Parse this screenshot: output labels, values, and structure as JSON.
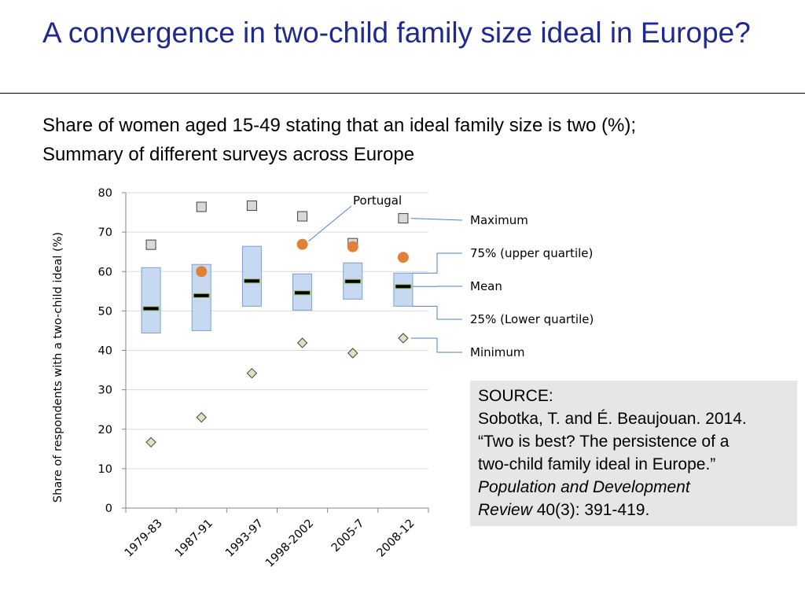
{
  "slide": {
    "title": "A convergence in two-child family size ideal in Europe?",
    "subtitle_line1": "Share of women aged 15-49 stating that an ideal family size is two (%);",
    "subtitle_line2": "Summary of different surveys across Europe"
  },
  "source": {
    "heading": "SOURCE:",
    "line1": "Sobotka, T. and É. Beaujouan. 2014.",
    "line2": "“Two is best? The persistence of a",
    "line3": "two-child family ideal in Europe.”",
    "journal_line1": "Population and Development",
    "journal_line2": "Review",
    "citation": " 40(3): 391-419."
  },
  "colors": {
    "title": "#1F2A8C",
    "box_fill": "#C6D9F1",
    "box_stroke": "#7F9FCF",
    "mean_bar": "#000000",
    "mean_outline": "#9BBB59",
    "portugal": "#E0813A",
    "maximum_marker": "#D9D9D9",
    "minimum_marker": "#D8E4BC",
    "callout_line": "#4F81BD",
    "source_bg": "#E6E6E6"
  },
  "chart_data": {
    "type": "box",
    "categories": [
      "1979-83",
      "1987-91",
      "1993-97",
      "1998-2002",
      "2005-7",
      "2008-12"
    ],
    "ylabel": "Share of respondents with a two-child ideal (%)",
    "xlabel": "",
    "ylim": [
      0,
      80
    ],
    "yticks": [
      0,
      10,
      20,
      30,
      40,
      50,
      60,
      70,
      80
    ],
    "grid": true,
    "series": [
      {
        "key": "max",
        "name": "Maximum",
        "values": [
          66.8,
          76.4,
          76.7,
          74.0,
          67.2,
          73.5
        ]
      },
      {
        "key": "q3",
        "name": "75% (upper quartile)",
        "values": [
          61.0,
          61.8,
          66.4,
          59.4,
          62.2,
          59.6
        ]
      },
      {
        "key": "mean",
        "name": "Mean",
        "values": [
          50.6,
          53.9,
          57.6,
          54.6,
          57.5,
          56.2
        ]
      },
      {
        "key": "q1",
        "name": "25% (Lower quartile)",
        "values": [
          44.4,
          45.0,
          51.2,
          50.2,
          53.0,
          51.2
        ]
      },
      {
        "key": "min",
        "name": "Minimum",
        "values": [
          16.7,
          23.0,
          34.2,
          41.9,
          39.3,
          43.1
        ]
      },
      {
        "key": "portugal",
        "name": "Portugal",
        "values": [
          null,
          60.0,
          null,
          66.9,
          66.3,
          63.6
        ]
      }
    ]
  }
}
